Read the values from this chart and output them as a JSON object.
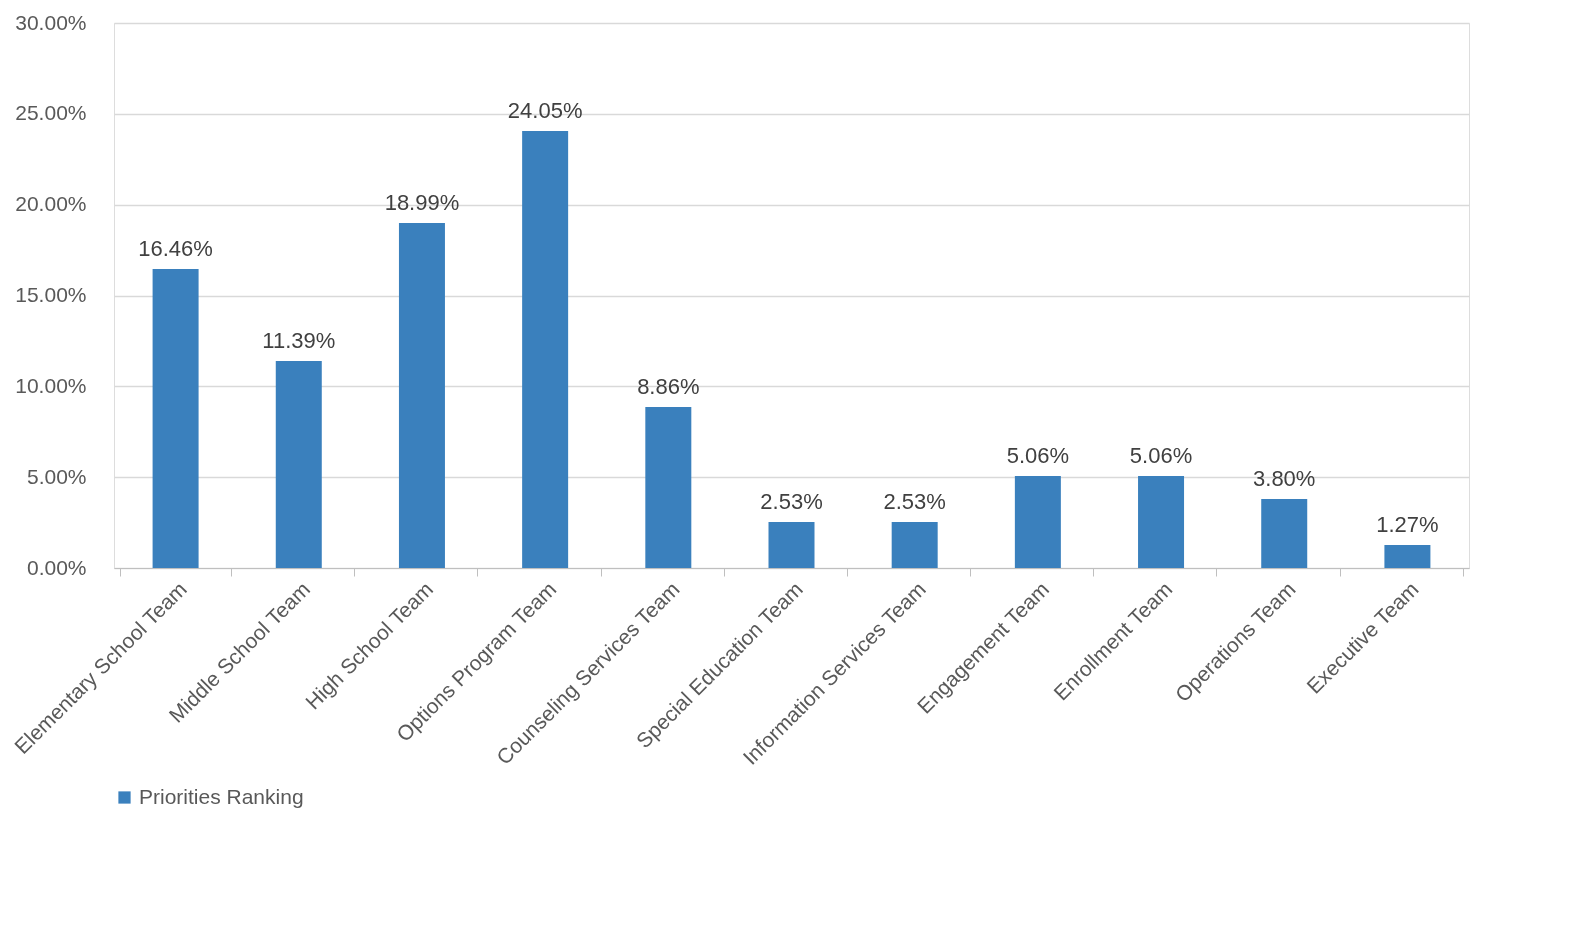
{
  "chart_data": {
    "type": "bar",
    "categories": [
      "Elementary School Team",
      "Middle School Team",
      "High School Team",
      "Options Program Team",
      "Counseling Services Team",
      "Special Education Team",
      "Information Services Team",
      "Engagement Team",
      "Enrollment Team",
      "Operations Team",
      "Executive Team"
    ],
    "series": [
      {
        "name": "Priorities Ranking",
        "color": "#3a80bd",
        "values": [
          16.46,
          11.39,
          18.99,
          24.05,
          8.86,
          2.53,
          2.53,
          5.06,
          5.06,
          3.8,
          1.27
        ],
        "value_labels": [
          "16.46%",
          "11.39%",
          "18.99%",
          "24.05%",
          "8.86%",
          "2.53%",
          "2.53%",
          "5.06%",
          "5.06%",
          "3.80%",
          "1.27%"
        ]
      }
    ],
    "ylim": [
      0,
      30
    ],
    "yticks": [
      {
        "value": 0,
        "label": "0.00%"
      },
      {
        "value": 5,
        "label": "5.00%"
      },
      {
        "value": 10,
        "label": "10.00%"
      },
      {
        "value": 15,
        "label": "15.00%"
      },
      {
        "value": 20,
        "label": "20.00%"
      },
      {
        "value": 25,
        "label": "25.00%"
      },
      {
        "value": 30,
        "label": "30.00%"
      }
    ],
    "grid": "y",
    "legend": "bottom"
  }
}
